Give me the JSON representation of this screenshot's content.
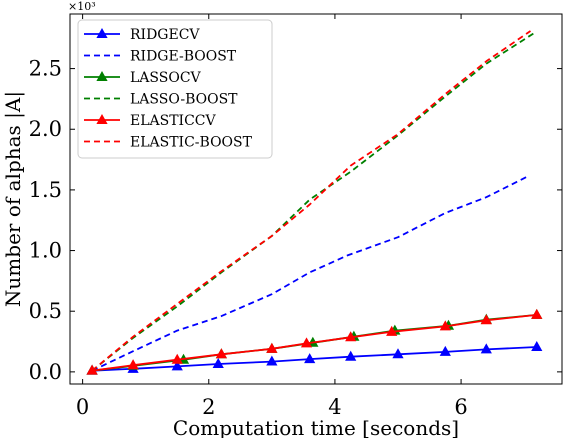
{
  "chart_data": {
    "type": "line",
    "xlabel": "Computation time [seconds]",
    "ylabel": "Number of alphas |A|",
    "y_multiplier_label": "×10³",
    "xlim": [
      -0.2,
      7.6
    ],
    "ylim": [
      -0.1,
      2.95
    ],
    "x_ticks": [
      0,
      2,
      4,
      6
    ],
    "x_tick_labels": [
      "0",
      "2",
      "4",
      "6"
    ],
    "y_ticks": [
      0.0,
      0.5,
      1.0,
      1.5,
      2.0,
      2.5
    ],
    "y_tick_labels": [
      "0.0",
      "0.5",
      "1.0",
      "1.5",
      "2.0",
      "2.5"
    ],
    "grid": false,
    "legend_position": "top-left",
    "series": [
      {
        "name": "RIDGECV",
        "color": "#0000ff",
        "dash": "solid",
        "marker": "triangle",
        "x": [
          0.15,
          0.8,
          1.5,
          2.15,
          3.0,
          3.6,
          4.25,
          5.0,
          5.75,
          6.4,
          7.2
        ],
        "y": [
          0.01,
          0.025,
          0.045,
          0.065,
          0.085,
          0.105,
          0.125,
          0.145,
          0.165,
          0.185,
          0.205
        ]
      },
      {
        "name": "RIDGE-BOOST",
        "color": "#0000ff",
        "dash": "dashed",
        "marker": "none",
        "x": [
          0.15,
          0.8,
          1.5,
          2.2,
          3.0,
          3.6,
          4.2,
          5.0,
          5.75,
          6.4,
          7.05
        ],
        "y": [
          0.01,
          0.17,
          0.34,
          0.46,
          0.64,
          0.82,
          0.96,
          1.11,
          1.31,
          1.44,
          1.61
        ]
      },
      {
        "name": "LASSOCV",
        "color": "#008000",
        "dash": "solid",
        "marker": "triangle",
        "x": [
          0.15,
          0.8,
          1.6,
          2.2,
          3.0,
          3.65,
          4.3,
          4.95,
          5.8,
          6.4,
          7.2
        ],
        "y": [
          0.01,
          0.05,
          0.1,
          0.145,
          0.19,
          0.24,
          0.29,
          0.34,
          0.38,
          0.43,
          0.47
        ]
      },
      {
        "name": "LASSO-BOOST",
        "color": "#008000",
        "dash": "dashed",
        "marker": "none",
        "x": [
          0.15,
          0.8,
          1.5,
          2.2,
          3.0,
          3.6,
          4.25,
          5.0,
          5.75,
          6.4,
          7.15
        ],
        "y": [
          0.01,
          0.28,
          0.54,
          0.82,
          1.12,
          1.42,
          1.65,
          1.95,
          2.27,
          2.54,
          2.79
        ]
      },
      {
        "name": "ELASTICCV",
        "color": "#ff0000",
        "dash": "solid",
        "marker": "triangle",
        "x": [
          0.15,
          0.8,
          1.5,
          2.2,
          3.0,
          3.55,
          4.25,
          4.9,
          5.75,
          6.4,
          7.2
        ],
        "y": [
          0.01,
          0.055,
          0.1,
          0.145,
          0.19,
          0.235,
          0.285,
          0.33,
          0.375,
          0.425,
          0.47
        ]
      },
      {
        "name": "ELASTIC-BOOST",
        "color": "#ff0000",
        "dash": "dashed",
        "marker": "none",
        "x": [
          0.15,
          0.8,
          1.5,
          2.2,
          3.0,
          3.6,
          4.25,
          5.0,
          5.75,
          6.4,
          7.1
        ],
        "y": [
          0.01,
          0.29,
          0.56,
          0.83,
          1.12,
          1.38,
          1.7,
          1.96,
          2.29,
          2.56,
          2.81
        ]
      }
    ]
  }
}
